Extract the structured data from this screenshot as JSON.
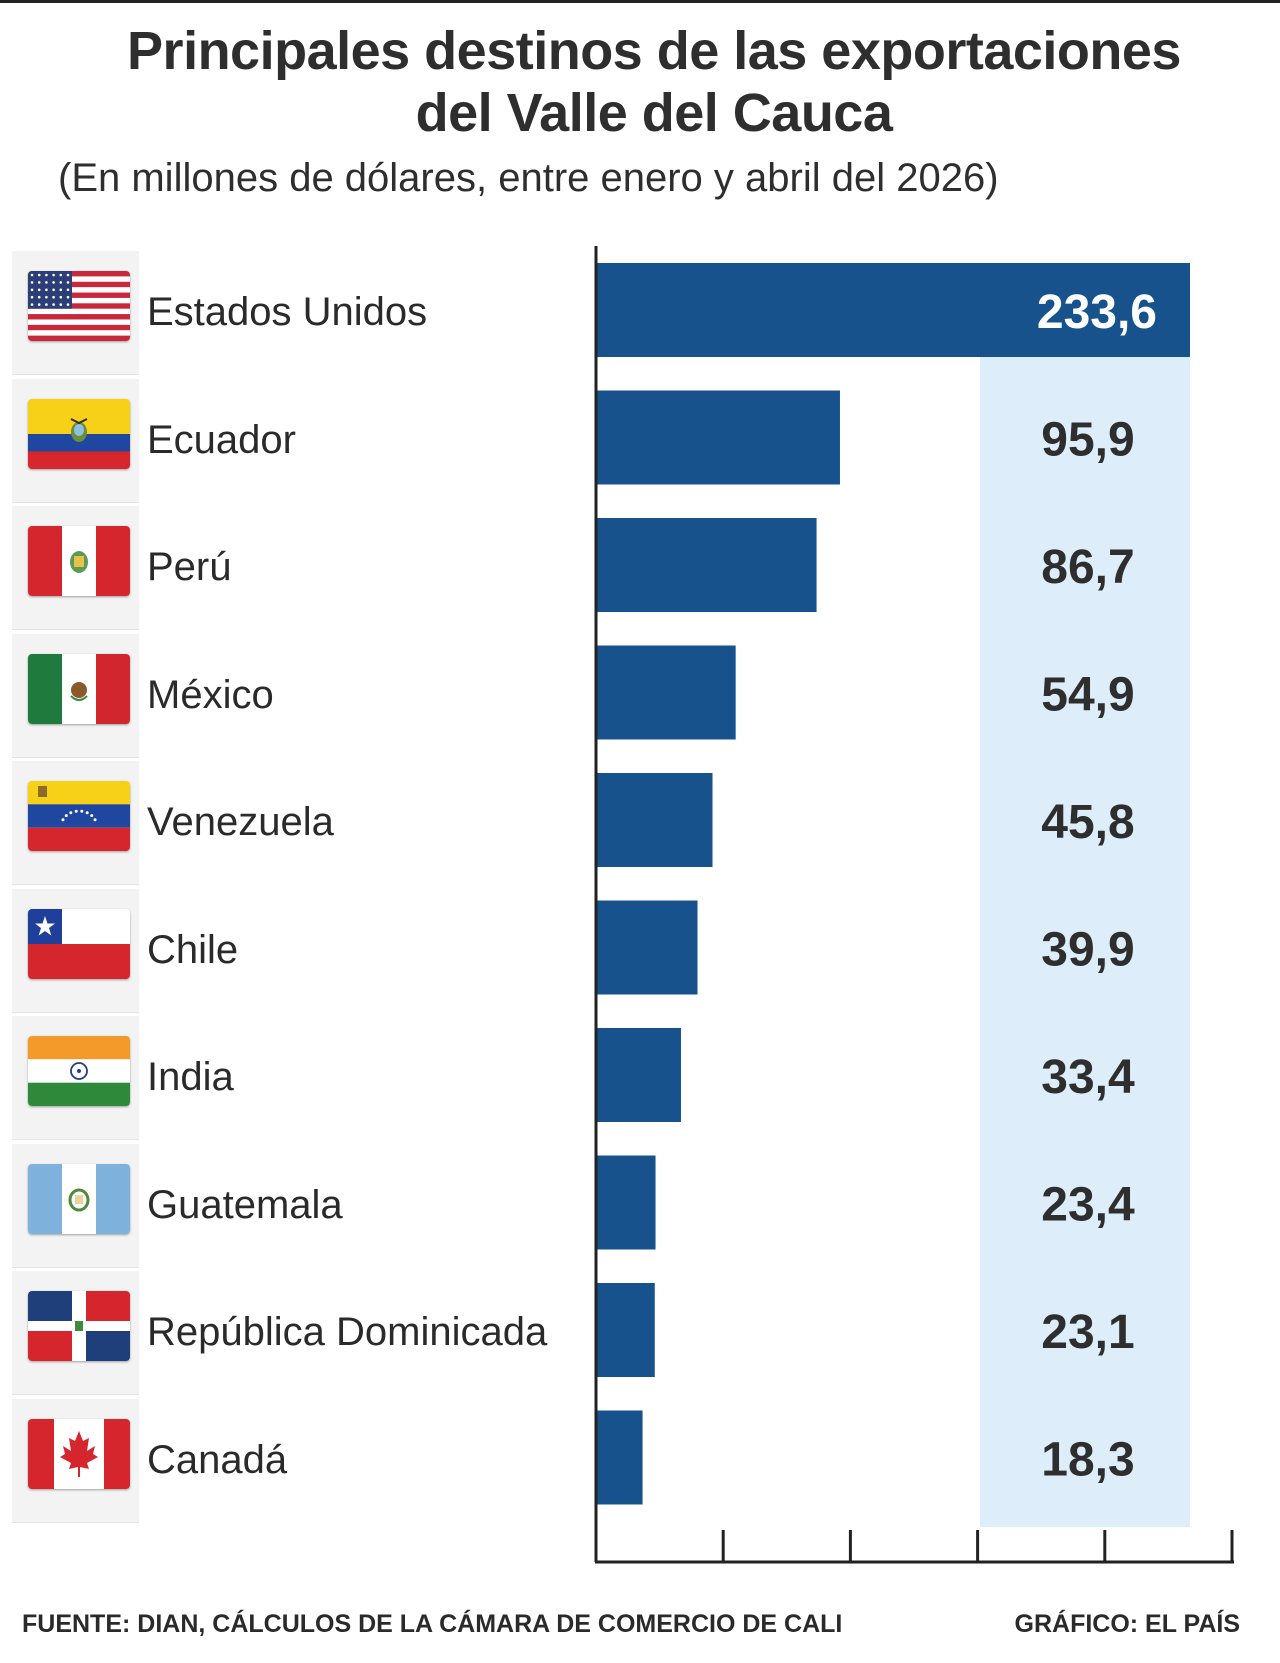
{
  "title_line1": "Principales destinos de las exportaciones",
  "title_line2": "del Valle del Cauca",
  "subtitle": "(En millones de dólares, entre enero y abril del 2026)",
  "footer": {
    "source": "FUENTE:   DIAN, CÁLCULOS DE LA CÁMARA DE COMERCIO DE CALI",
    "credit": "GRÁFICO: EL PAÍS"
  },
  "colors": {
    "bar": "#18528c",
    "value_panel": "#ddeefa",
    "axis": "#222222",
    "highlight_label": "#ffffff",
    "label": "#2e2e2e"
  },
  "chart_data": {
    "type": "bar",
    "orientation": "horizontal",
    "categories": [
      "Estados Unidos",
      "Ecuador",
      "Perú",
      "México",
      "Venezuela",
      "Chile",
      "India",
      "Guatemala",
      "República Dominicada",
      "Canadá"
    ],
    "values": [
      233.6,
      95.9,
      86.7,
      54.9,
      45.8,
      39.9,
      33.4,
      23.4,
      23.1,
      18.3
    ],
    "value_labels": [
      "233,6",
      "95,9",
      "86,7",
      "54,9",
      "45,8",
      "39,9",
      "33,4",
      "23,4",
      "23,1",
      "18,3"
    ],
    "flag_icons": [
      "flag-usa-icon",
      "flag-ecuador-icon",
      "flag-peru-icon",
      "flag-mexico-icon",
      "flag-venezuela-icon",
      "flag-chile-icon",
      "flag-india-icon",
      "flag-guatemala-icon",
      "flag-dominican-republic-icon",
      "flag-canada-icon"
    ],
    "xlim": [
      0,
      250
    ],
    "x_ticks": [
      0,
      50,
      100,
      150,
      200,
      250
    ],
    "tick_labels_shown": false,
    "grid": false
  }
}
